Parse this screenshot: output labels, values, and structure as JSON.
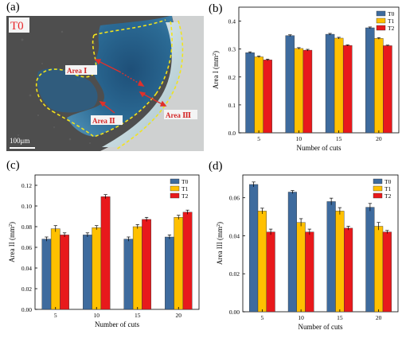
{
  "panels": {
    "a": "(a)",
    "b": "(b)",
    "c": "(c)",
    "d": "(d)"
  },
  "micrograph": {
    "label": "T0",
    "area1": "Area Ⅰ",
    "area2": "Area Ⅱ",
    "area3": "Area Ⅲ",
    "scalebar": "100μm",
    "colors": {
      "label": "#e8262a",
      "arrow": "#e0302b",
      "boundary": "#f2e41c"
    }
  },
  "chart_data": [
    {
      "type": "bar",
      "panel": "b",
      "categories": [
        "5",
        "10",
        "15",
        "20"
      ],
      "series": [
        {
          "name": "T0",
          "values": [
            0.287,
            0.348,
            0.353,
            0.376
          ],
          "errors": [
            0.003,
            0.003,
            0.003,
            0.003
          ],
          "color": "#3e6b9e"
        },
        {
          "name": "T1",
          "values": [
            0.272,
            0.302,
            0.339,
            0.338
          ],
          "errors": [
            0.003,
            0.003,
            0.003,
            0.003
          ],
          "color": "#ffc000"
        },
        {
          "name": "T2",
          "values": [
            0.261,
            0.296,
            0.313,
            0.312
          ],
          "errors": [
            0.003,
            0.003,
            0.002,
            0.002
          ],
          "color": "#e8191c"
        }
      ],
      "xlabel": "Number of cuts",
      "ylabel": "Area I (mm²)",
      "ylim": [
        0,
        0.45
      ],
      "yticks": [
        "0.0",
        "0.1",
        "0.2",
        "0.3",
        "0.4"
      ],
      "legend": "top-right"
    },
    {
      "type": "bar",
      "panel": "c",
      "categories": [
        "5",
        "10",
        "15",
        "20"
      ],
      "series": [
        {
          "name": "T0",
          "values": [
            0.068,
            0.072,
            0.068,
            0.07
          ],
          "errors": [
            0.002,
            0.002,
            0.002,
            0.002
          ],
          "color": "#3e6b9e"
        },
        {
          "name": "T1",
          "values": [
            0.078,
            0.079,
            0.08,
            0.089
          ],
          "errors": [
            0.003,
            0.002,
            0.002,
            0.002
          ],
          "color": "#ffc000"
        },
        {
          "name": "T2",
          "values": [
            0.072,
            0.109,
            0.087,
            0.094
          ],
          "errors": [
            0.002,
            0.002,
            0.002,
            0.002
          ],
          "color": "#e8191c"
        }
      ],
      "xlabel": "Number of cuts",
      "ylabel": "Area II (mm²)",
      "ylim": [
        0,
        0.13
      ],
      "yticks": [
        "0.00",
        "0.02",
        "0.04",
        "0.06",
        "0.08",
        "0.10",
        "0.12"
      ],
      "legend": "top-right"
    },
    {
      "type": "bar",
      "panel": "d",
      "categories": [
        "5",
        "10",
        "15",
        "20"
      ],
      "series": [
        {
          "name": "T0",
          "values": [
            0.067,
            0.063,
            0.058,
            0.055
          ],
          "errors": [
            0.0013,
            0.0008,
            0.0018,
            0.002
          ],
          "color": "#3e6b9e"
        },
        {
          "name": "T1",
          "values": [
            0.053,
            0.047,
            0.053,
            0.045
          ],
          "errors": [
            0.0015,
            0.002,
            0.0018,
            0.002
          ],
          "color": "#ffc000"
        },
        {
          "name": "T2",
          "values": [
            0.042,
            0.042,
            0.044,
            0.042
          ],
          "errors": [
            0.0015,
            0.0015,
            0.001,
            0.0008
          ],
          "color": "#e8191c"
        }
      ],
      "xlabel": "Number of cuts",
      "ylabel": "Area III (mm²)",
      "ylim": [
        0,
        0.072
      ],
      "yticks": [
        "0.00",
        "0.02",
        "0.04",
        "0.06"
      ],
      "legend": "top-right"
    }
  ]
}
